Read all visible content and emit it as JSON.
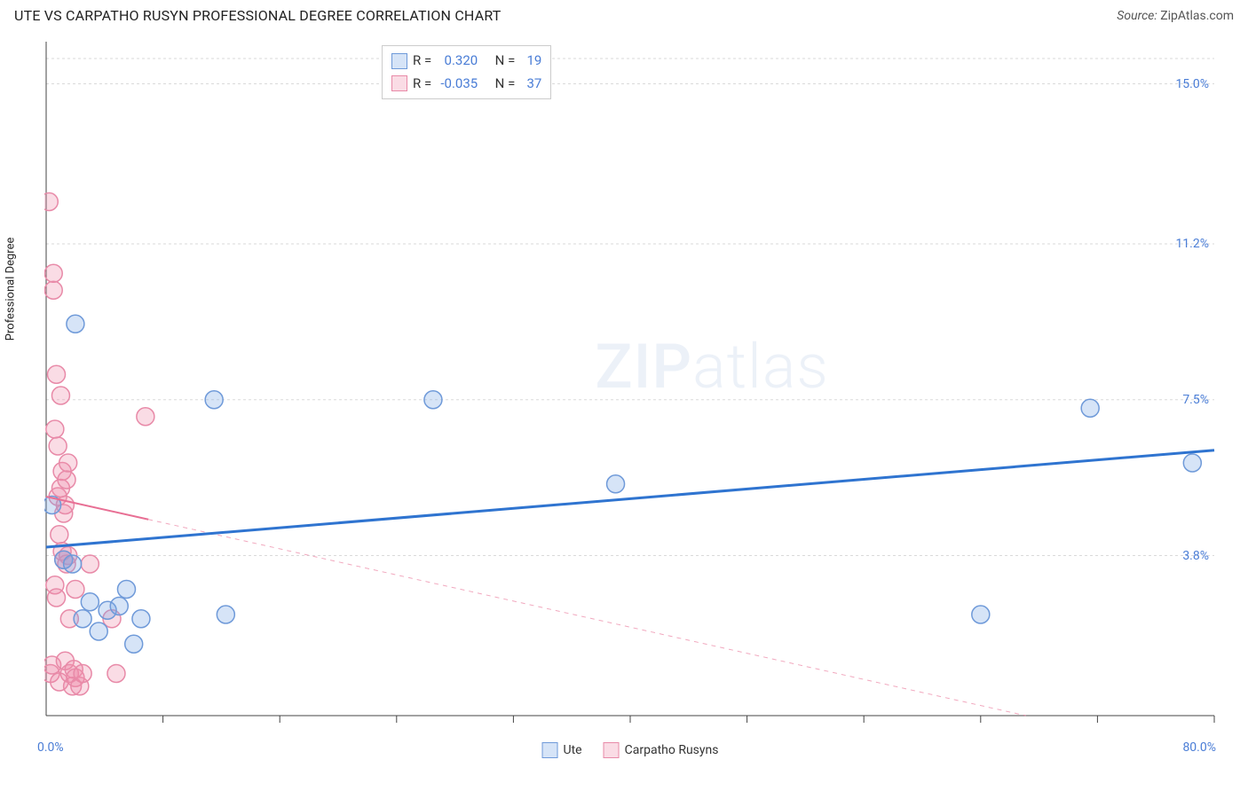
{
  "header": {
    "title": "UTE VS CARPATHO RUSYN PROFESSIONAL DEGREE CORRELATION CHART",
    "source_label": "Source:",
    "source_value": "ZipAtlas.com"
  },
  "watermark": {
    "zip": "ZIP",
    "atlas": "atlas"
  },
  "chart": {
    "type": "scatter",
    "y_axis_label": "Professional Degree",
    "xlim": [
      0,
      80
    ],
    "ylim": [
      0,
      16
    ],
    "x_min_label": "0.0%",
    "x_max_label": "80.0%",
    "y_ticks": [
      {
        "value": 3.8,
        "label": "3.8%"
      },
      {
        "value": 7.5,
        "label": "7.5%"
      },
      {
        "value": 11.2,
        "label": "11.2%"
      },
      {
        "value": 15.0,
        "label": "15.0%"
      }
    ],
    "x_ticks": [
      8,
      16,
      24,
      32,
      40,
      48,
      56,
      64,
      72,
      80
    ],
    "grid_color": "#dadada",
    "grid_dash": "3,3",
    "axis_color": "#444444",
    "background_color": "#ffffff",
    "marker_radius": 10,
    "marker_stroke_width": 1.5,
    "series": {
      "ute": {
        "label": "Ute",
        "fill": "rgba(120,165,230,0.30)",
        "stroke": "#6f9ad9",
        "trend_color": "#2f74d0",
        "trend_width": 3,
        "trend_dash": "none",
        "r_label": "R =",
        "r_value": "0.320",
        "n_label": "N =",
        "n_value": "19",
        "points": [
          [
            0.4,
            5.0
          ],
          [
            1.2,
            3.7
          ],
          [
            1.8,
            3.6
          ],
          [
            2.0,
            9.3
          ],
          [
            2.5,
            2.3
          ],
          [
            3.0,
            2.7
          ],
          [
            3.6,
            2.0
          ],
          [
            4.2,
            2.5
          ],
          [
            5.0,
            2.6
          ],
          [
            5.5,
            3.0
          ],
          [
            6.0,
            1.7
          ],
          [
            6.5,
            2.3
          ],
          [
            11.5,
            7.5
          ],
          [
            12.3,
            2.4
          ],
          [
            26.5,
            7.5
          ],
          [
            39.0,
            5.5
          ],
          [
            64.0,
            2.4
          ],
          [
            71.5,
            7.3
          ],
          [
            78.5,
            6.0
          ]
        ],
        "trend": {
          "x0": 0,
          "y0": 4.0,
          "x1": 80,
          "y1": 6.3
        }
      },
      "carpatho": {
        "label": "Carpatho Rusyns",
        "fill": "rgba(240,140,170,0.30)",
        "stroke": "#e88aa8",
        "trend_color": "#e86f94",
        "trend_width": 2,
        "trend_dash_solid_until_x": 7,
        "trend_dash": "5,5",
        "r_label": "R =",
        "r_value": "-0.035",
        "n_label": "N =",
        "n_value": "37",
        "points": [
          [
            0.2,
            12.2
          ],
          [
            0.3,
            1.0
          ],
          [
            0.4,
            1.2
          ],
          [
            0.5,
            10.5
          ],
          [
            0.5,
            10.1
          ],
          [
            0.6,
            3.1
          ],
          [
            0.6,
            6.8
          ],
          [
            0.7,
            8.1
          ],
          [
            0.7,
            2.8
          ],
          [
            0.8,
            5.2
          ],
          [
            0.8,
            6.4
          ],
          [
            0.9,
            4.3
          ],
          [
            0.9,
            0.8
          ],
          [
            1.0,
            7.6
          ],
          [
            1.0,
            5.4
          ],
          [
            1.1,
            3.9
          ],
          [
            1.1,
            5.8
          ],
          [
            1.2,
            3.7
          ],
          [
            1.2,
            4.8
          ],
          [
            1.3,
            1.3
          ],
          [
            1.3,
            5.0
          ],
          [
            1.4,
            5.6
          ],
          [
            1.4,
            3.6
          ],
          [
            1.5,
            3.8
          ],
          [
            1.5,
            6.0
          ],
          [
            1.6,
            1.0
          ],
          [
            1.6,
            2.3
          ],
          [
            1.8,
            0.7
          ],
          [
            1.9,
            1.1
          ],
          [
            2.0,
            3.0
          ],
          [
            2.0,
            0.9
          ],
          [
            2.3,
            0.7
          ],
          [
            2.5,
            1.0
          ],
          [
            3.0,
            3.6
          ],
          [
            4.5,
            2.3
          ],
          [
            4.8,
            1.0
          ],
          [
            6.8,
            7.1
          ]
        ],
        "trend": {
          "x0": 0,
          "y0": 5.2,
          "x1": 80,
          "y1": -1.0
        }
      }
    }
  },
  "bottom_legend": {
    "items": [
      {
        "key": "ute",
        "label": "Ute"
      },
      {
        "key": "carpatho",
        "label": "Carpatho Rusyns"
      }
    ]
  }
}
